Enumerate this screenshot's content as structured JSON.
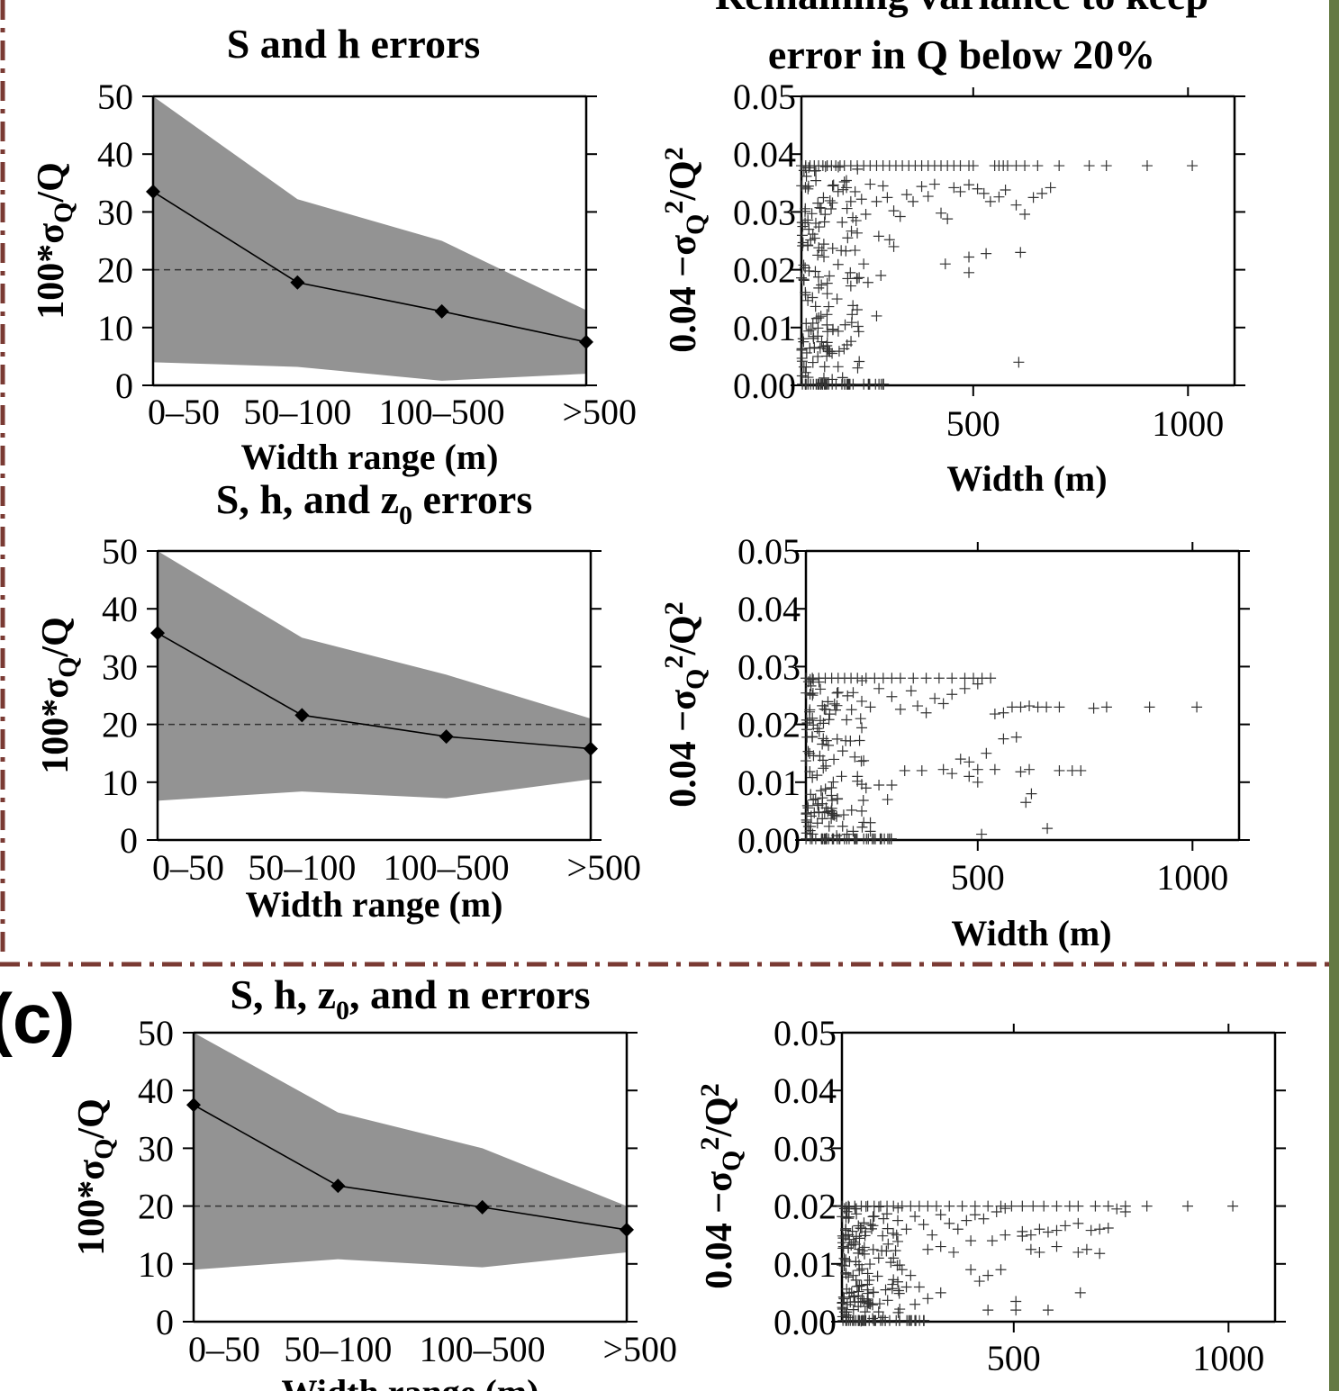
{
  "colors": {
    "band": "#939393",
    "line": "#000000",
    "marker": "#000000",
    "scatter": "#333333",
    "separator": "#7a3a33",
    "right_bar": "#647a44"
  },
  "panel_label": "(c)",
  "header_right": {
    "line1": "Remaining variance to keep",
    "line2": "error in Q below 20%"
  },
  "chart_data": [
    {
      "id": "a-left",
      "type": "line",
      "title": "S and  h errors",
      "xlabel": "Width range (m)",
      "ylabel_plain": "100*σQ/Q",
      "categories": [
        "0–50",
        "50–100",
        "100–500",
        ">500"
      ],
      "series": [
        {
          "values": [
            33.5,
            17.8,
            12.8,
            7.5
          ]
        }
      ],
      "band_upper": [
        50,
        32.2,
        25.0,
        13.0
      ],
      "band_lower": [
        4.0,
        3.2,
        0.8,
        2.0
      ],
      "reference_line": 20,
      "ylim": [
        0,
        50
      ],
      "yticks": [
        "0",
        "10",
        "20",
        "30",
        "40",
        "50"
      ]
    },
    {
      "id": "a-right",
      "type": "scatter",
      "xlabel": "Width (m)",
      "ylabel_plain": "0.04 −σQ²/Q²",
      "xticks": [
        "500",
        "1000"
      ],
      "yticks": [
        "0.00",
        "0.01",
        "0.02",
        "0.03",
        "0.04",
        "0.05"
      ],
      "xlim": [
        0,
        1100
      ],
      "ylim": [
        0,
        0.05
      ],
      "plateau": 0.038,
      "mid": [
        [
          200,
          0.0352
        ],
        [
          205,
          0.0342
        ],
        [
          215,
          0.0318
        ],
        [
          225,
          0.0335
        ],
        [
          240,
          0.0322
        ],
        [
          250,
          0.0296
        ],
        [
          260,
          0.0348
        ],
        [
          275,
          0.0318
        ],
        [
          280,
          0.0258
        ],
        [
          290,
          0.0345
        ],
        [
          300,
          0.0325
        ],
        [
          315,
          0.0302
        ],
        [
          330,
          0.0292
        ],
        [
          345,
          0.033
        ],
        [
          360,
          0.0318
        ],
        [
          380,
          0.0344
        ],
        [
          395,
          0.0327
        ],
        [
          410,
          0.0348
        ],
        [
          425,
          0.0298
        ],
        [
          440,
          0.0288
        ],
        [
          455,
          0.0342
        ],
        [
          470,
          0.0335
        ],
        [
          490,
          0.0347
        ],
        [
          510,
          0.034
        ],
        [
          525,
          0.0332
        ],
        [
          540,
          0.0318
        ],
        [
          560,
          0.0326
        ],
        [
          575,
          0.0338
        ],
        [
          600,
          0.0312
        ],
        [
          620,
          0.0296
        ],
        [
          640,
          0.0325
        ],
        [
          660,
          0.0332
        ],
        [
          680,
          0.0342
        ],
        [
          305,
          0.0252
        ],
        [
          315,
          0.024
        ],
        [
          230,
          0.0185
        ],
        [
          255,
          0.0178
        ],
        [
          245,
          0.021
        ],
        [
          285,
          0.019
        ],
        [
          215,
          0.0172
        ],
        [
          435,
          0.021
        ],
        [
          490,
          0.0222
        ],
        [
          490,
          0.0195
        ],
        [
          530,
          0.0228
        ],
        [
          610,
          0.023
        ],
        [
          275,
          0.012
        ],
        [
          606,
          0.004
        ]
      ],
      "plateau_x": [
        100,
        110,
        120,
        130,
        140,
        150,
        160,
        170,
        180,
        190,
        200,
        215,
        230,
        245,
        260,
        275,
        290,
        305,
        320,
        335,
        350,
        365,
        380,
        395,
        410,
        425,
        440,
        455,
        470,
        490,
        500,
        550,
        560,
        570,
        580,
        600,
        620,
        650,
        700,
        770,
        810,
        905,
        1010
      ],
      "low_x_count": 150
    },
    {
      "id": "b-left",
      "type": "line",
      "title_main": "S, h, and z",
      "title_sub": "0",
      "title_tail": " errors",
      "xlabel": "Width range (m)",
      "ylabel_plain": "100*σQ/Q",
      "categories": [
        "0–50",
        "50–100",
        "100–500",
        ">500"
      ],
      "series": [
        {
          "values": [
            35.8,
            21.6,
            17.9,
            15.8
          ]
        }
      ],
      "band_upper": [
        50,
        35.0,
        28.6,
        21.0
      ],
      "band_lower": [
        6.8,
        8.4,
        7.2,
        10.5
      ],
      "reference_line": 20,
      "ylim": [
        0,
        50
      ],
      "yticks": [
        "0",
        "10",
        "20",
        "30",
        "40",
        "50"
      ]
    },
    {
      "id": "b-right",
      "type": "scatter",
      "xlabel": "Width (m)",
      "ylabel_plain": "0.04 −σQ²/Q²",
      "xticks": [
        "500",
        "1000"
      ],
      "yticks": [
        "0.00",
        "0.01",
        "0.02",
        "0.03",
        "0.04",
        "0.05"
      ],
      "xlim": [
        0,
        1100
      ],
      "ylim": [
        0,
        0.05
      ],
      "plateau": 0.028,
      "mid": [
        [
          210,
          0.0255
        ],
        [
          230,
          0.024
        ],
        [
          250,
          0.023
        ],
        [
          270,
          0.0262
        ],
        [
          300,
          0.0248
        ],
        [
          320,
          0.0226
        ],
        [
          345,
          0.0258
        ],
        [
          360,
          0.0232
        ],
        [
          380,
          0.022
        ],
        [
          400,
          0.0245
        ],
        [
          420,
          0.0236
        ],
        [
          440,
          0.0252
        ],
        [
          470,
          0.0262
        ],
        [
          500,
          0.027
        ],
        [
          540,
          0.0218
        ],
        [
          560,
          0.022
        ],
        [
          580,
          0.023
        ],
        [
          600,
          0.023
        ],
        [
          620,
          0.0232
        ],
        [
          640,
          0.023
        ],
        [
          660,
          0.023
        ],
        [
          690,
          0.023
        ],
        [
          770,
          0.0228
        ],
        [
          800,
          0.023
        ],
        [
          900,
          0.023
        ],
        [
          1010,
          0.023
        ],
        [
          330,
          0.012
        ],
        [
          370,
          0.012
        ],
        [
          420,
          0.0122
        ],
        [
          460,
          0.014
        ],
        [
          480,
          0.0135
        ],
        [
          500,
          0.0122
        ],
        [
          520,
          0.015
        ],
        [
          540,
          0.0122
        ],
        [
          600,
          0.0118
        ],
        [
          620,
          0.0122
        ],
        [
          690,
          0.012
        ],
        [
          720,
          0.012
        ],
        [
          740,
          0.012
        ],
        [
          625,
          0.008
        ],
        [
          270,
          0.0095
        ],
        [
          290,
          0.007
        ],
        [
          240,
          0.009
        ],
        [
          220,
          0.011
        ],
        [
          300,
          0.0095
        ],
        [
          440,
          0.0115
        ],
        [
          480,
          0.011
        ],
        [
          500,
          0.01
        ],
        [
          560,
          0.0175
        ],
        [
          590,
          0.0178
        ],
        [
          612,
          0.0065
        ],
        [
          662,
          0.002
        ],
        [
          509,
          0.001
        ],
        [
          230,
          0.005
        ],
        [
          250,
          0.003
        ],
        [
          210,
          0.0015
        ],
        [
          250,
          0.0015
        ]
      ],
      "plateau_x": [
        100,
        115,
        130,
        145,
        160,
        175,
        190,
        205,
        220,
        240,
        260,
        280,
        300,
        320,
        350,
        380,
        410,
        440,
        470,
        490,
        510,
        530
      ],
      "low_x_count": 120
    },
    {
      "id": "c-left",
      "type": "line",
      "title_main": "S, h, z",
      "title_sub": "0",
      "title_tail": ", and n errors",
      "xlabel": "Width range (m)",
      "ylabel_plain": "100*σQ/Q",
      "categories": [
        "0–50",
        "50–100",
        "100–500",
        ">500"
      ],
      "series": [
        {
          "values": [
            37.5,
            23.5,
            19.8,
            15.9
          ]
        }
      ],
      "band_upper": [
        50,
        36.2,
        30.0,
        20.0
      ],
      "band_lower": [
        9.0,
        10.8,
        9.4,
        12.0
      ],
      "reference_line": 20,
      "ylim": [
        0,
        50
      ],
      "yticks": [
        "0",
        "10",
        "20",
        "30",
        "40",
        "50"
      ]
    },
    {
      "id": "c-right",
      "type": "scatter",
      "ylabel_plain": "0.04 −σQ²/Q²",
      "xticks": [
        "500",
        "1000"
      ],
      "yticks": [
        "0.00",
        "0.01",
        "0.02",
        "0.03",
        "0.04",
        "0.05"
      ],
      "xlim": [
        0,
        1100
      ],
      "ylim": [
        0,
        0.05
      ],
      "plateau": 0.02,
      "mid": [
        [
          230,
          0.0175
        ],
        [
          250,
          0.016
        ],
        [
          270,
          0.0182
        ],
        [
          290,
          0.0168
        ],
        [
          310,
          0.015
        ],
        [
          330,
          0.0185
        ],
        [
          350,
          0.017
        ],
        [
          370,
          0.016
        ],
        [
          390,
          0.0175
        ],
        [
          410,
          0.0185
        ],
        [
          430,
          0.0178
        ],
        [
          460,
          0.019
        ],
        [
          480,
          0.0196
        ],
        [
          520,
          0.0156
        ],
        [
          540,
          0.015
        ],
        [
          560,
          0.016
        ],
        [
          580,
          0.0155
        ],
        [
          600,
          0.0158
        ],
        [
          620,
          0.0166
        ],
        [
          650,
          0.017
        ],
        [
          680,
          0.0158
        ],
        [
          700,
          0.016
        ],
        [
          720,
          0.0162
        ],
        [
          740,
          0.0195
        ],
        [
          760,
          0.019
        ],
        [
          300,
          0.0125
        ],
        [
          330,
          0.013
        ],
        [
          360,
          0.012
        ],
        [
          400,
          0.014
        ],
        [
          450,
          0.014
        ],
        [
          480,
          0.015
        ],
        [
          520,
          0.0148
        ],
        [
          540,
          0.0125
        ],
        [
          560,
          0.012
        ],
        [
          600,
          0.013
        ],
        [
          650,
          0.012
        ],
        [
          670,
          0.0125
        ],
        [
          700,
          0.0118
        ],
        [
          260,
          0.008
        ],
        [
          280,
          0.006
        ],
        [
          300,
          0.004
        ],
        [
          270,
          0.003
        ],
        [
          330,
          0.005
        ],
        [
          400,
          0.009
        ],
        [
          420,
          0.007
        ],
        [
          440,
          0.008
        ],
        [
          470,
          0.009
        ],
        [
          220,
          0.011
        ],
        [
          240,
          0.009
        ],
        [
          250,
          0.006
        ],
        [
          440,
          0.002
        ],
        [
          505,
          0.002
        ],
        [
          505,
          0.0035
        ],
        [
          655,
          0.005
        ],
        [
          580,
          0.002
        ]
      ],
      "plateau_x": [
        100,
        115,
        130,
        145,
        160,
        175,
        190,
        205,
        220,
        240,
        260,
        280,
        300,
        320,
        350,
        380,
        410,
        440,
        470,
        495,
        520,
        545,
        570,
        600,
        630,
        650,
        690,
        720,
        760,
        810,
        905,
        1010
      ],
      "low_x_count": 140
    }
  ]
}
